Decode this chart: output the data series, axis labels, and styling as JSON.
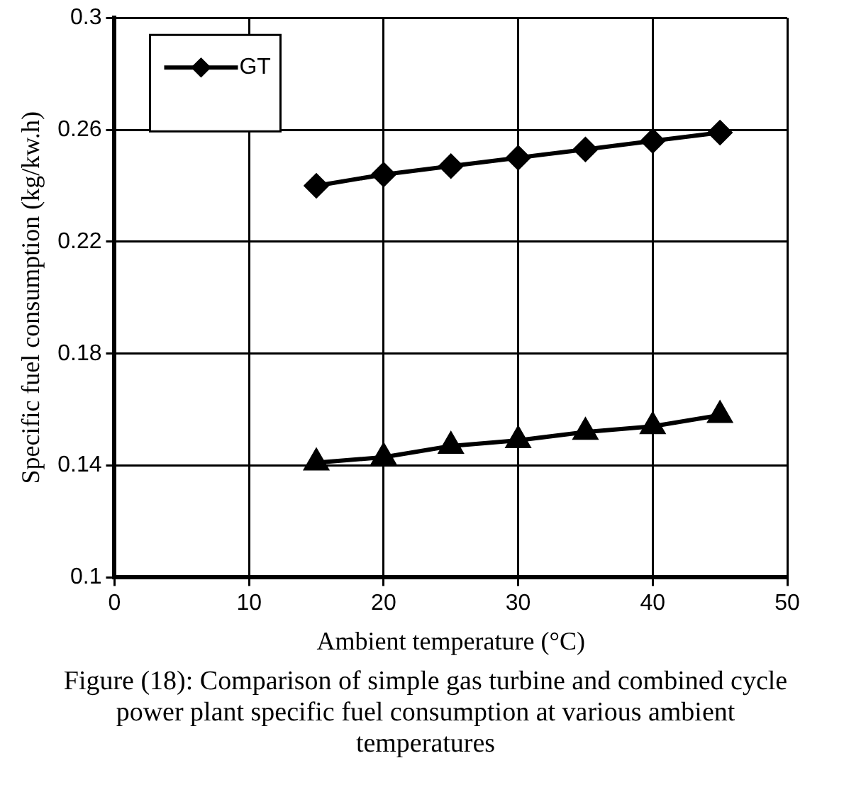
{
  "chart_data": {
    "type": "line",
    "xlabel": "Ambient temperature (°C)",
    "ylabel": "Specific fuel consumption (kg/kw.h)",
    "annotations": [
      "Figure (18): Comparison of simple gas turbine and combined cycle power plant specific fuel consumption at various ambient temperatures"
    ],
    "x": [
      15,
      20,
      25,
      30,
      35,
      40,
      45
    ],
    "series": [
      {
        "name": "GT",
        "color": "#000000",
        "marker": "diamond",
        "values": [
          0.24,
          0.244,
          0.247,
          0.25,
          0.253,
          0.256,
          0.259
        ]
      },
      {
        "color": "#000000",
        "marker": "triangle",
        "values": [
          0.141,
          0.143,
          0.147,
          0.149,
          0.152,
          0.154,
          0.158
        ]
      }
    ],
    "xlim": [
      0,
      50
    ],
    "xticks": [
      0,
      10,
      20,
      30,
      40,
      50
    ],
    "ylim": [
      0.1,
      0.3
    ],
    "yticks": [
      0.1,
      0.14,
      0.18,
      0.22,
      0.26,
      0.3
    ],
    "grid": true,
    "legend": "top left",
    "line_style": "solid"
  }
}
